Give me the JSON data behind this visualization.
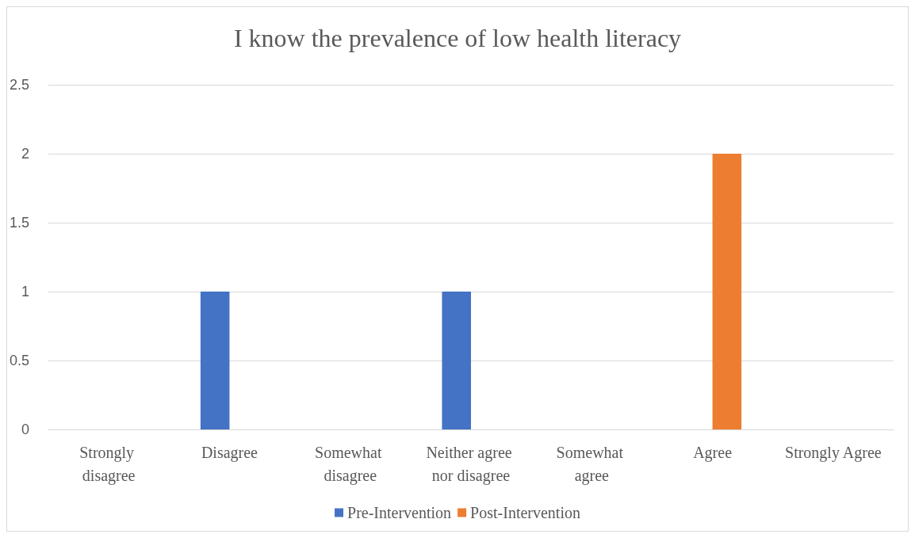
{
  "chart_data": {
    "type": "bar",
    "title": "I know the prevalence of low health literacy",
    "categories": [
      "Strongly disagree",
      "Disagree",
      "Somewhat disagree",
      "Neither agree nor disagree",
      "Somewhat agree",
      "Agree",
      "Strongly Agree"
    ],
    "series": [
      {
        "name": "Pre-Intervention",
        "color": "#4472c4",
        "values": [
          0,
          1,
          0,
          1,
          0,
          0,
          0
        ]
      },
      {
        "name": "Post-Intervention",
        "color": "#ed7d31",
        "values": [
          0,
          0,
          0,
          0,
          0,
          2,
          0
        ]
      }
    ],
    "ylim": [
      0,
      2.5
    ],
    "yticks": [
      0,
      0.5,
      1,
      1.5,
      2,
      2.5
    ],
    "grid": "y",
    "legend": "bottom"
  }
}
